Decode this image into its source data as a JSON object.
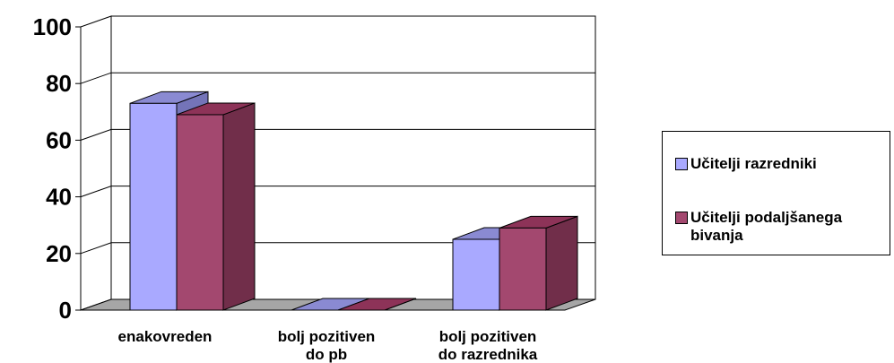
{
  "chart_data": {
    "type": "bar",
    "style": "3d-clustered",
    "categories": [
      [
        "enakovreden"
      ],
      [
        "bolj pozitiven",
        "do pb"
      ],
      [
        "bolj pozitiven",
        "do razrednika"
      ]
    ],
    "series": [
      {
        "name": "Učitelji razredniki",
        "values": [
          73,
          0,
          25
        ],
        "color": "#a9a9ff",
        "top_color": "#8a8ad2",
        "side_color": "#7474b8"
      },
      {
        "name": "Učitelji podaljšanega bivanja",
        "values": [
          69,
          0,
          29
        ],
        "color": "#a3486f",
        "top_color": "#8d3358",
        "side_color": "#712e4a"
      }
    ],
    "yticks": [
      "0",
      "20",
      "40",
      "60",
      "80",
      "100"
    ],
    "ylim": [
      0,
      100
    ],
    "grid": true,
    "legend": "right",
    "title": "",
    "xlabel": "",
    "ylabel": ""
  },
  "legend": {
    "items": [
      {
        "lines": [
          "Učitelji razredniki"
        ]
      },
      {
        "lines": [
          "Učitelji podaljšanega",
          "bivanja"
        ]
      }
    ]
  }
}
